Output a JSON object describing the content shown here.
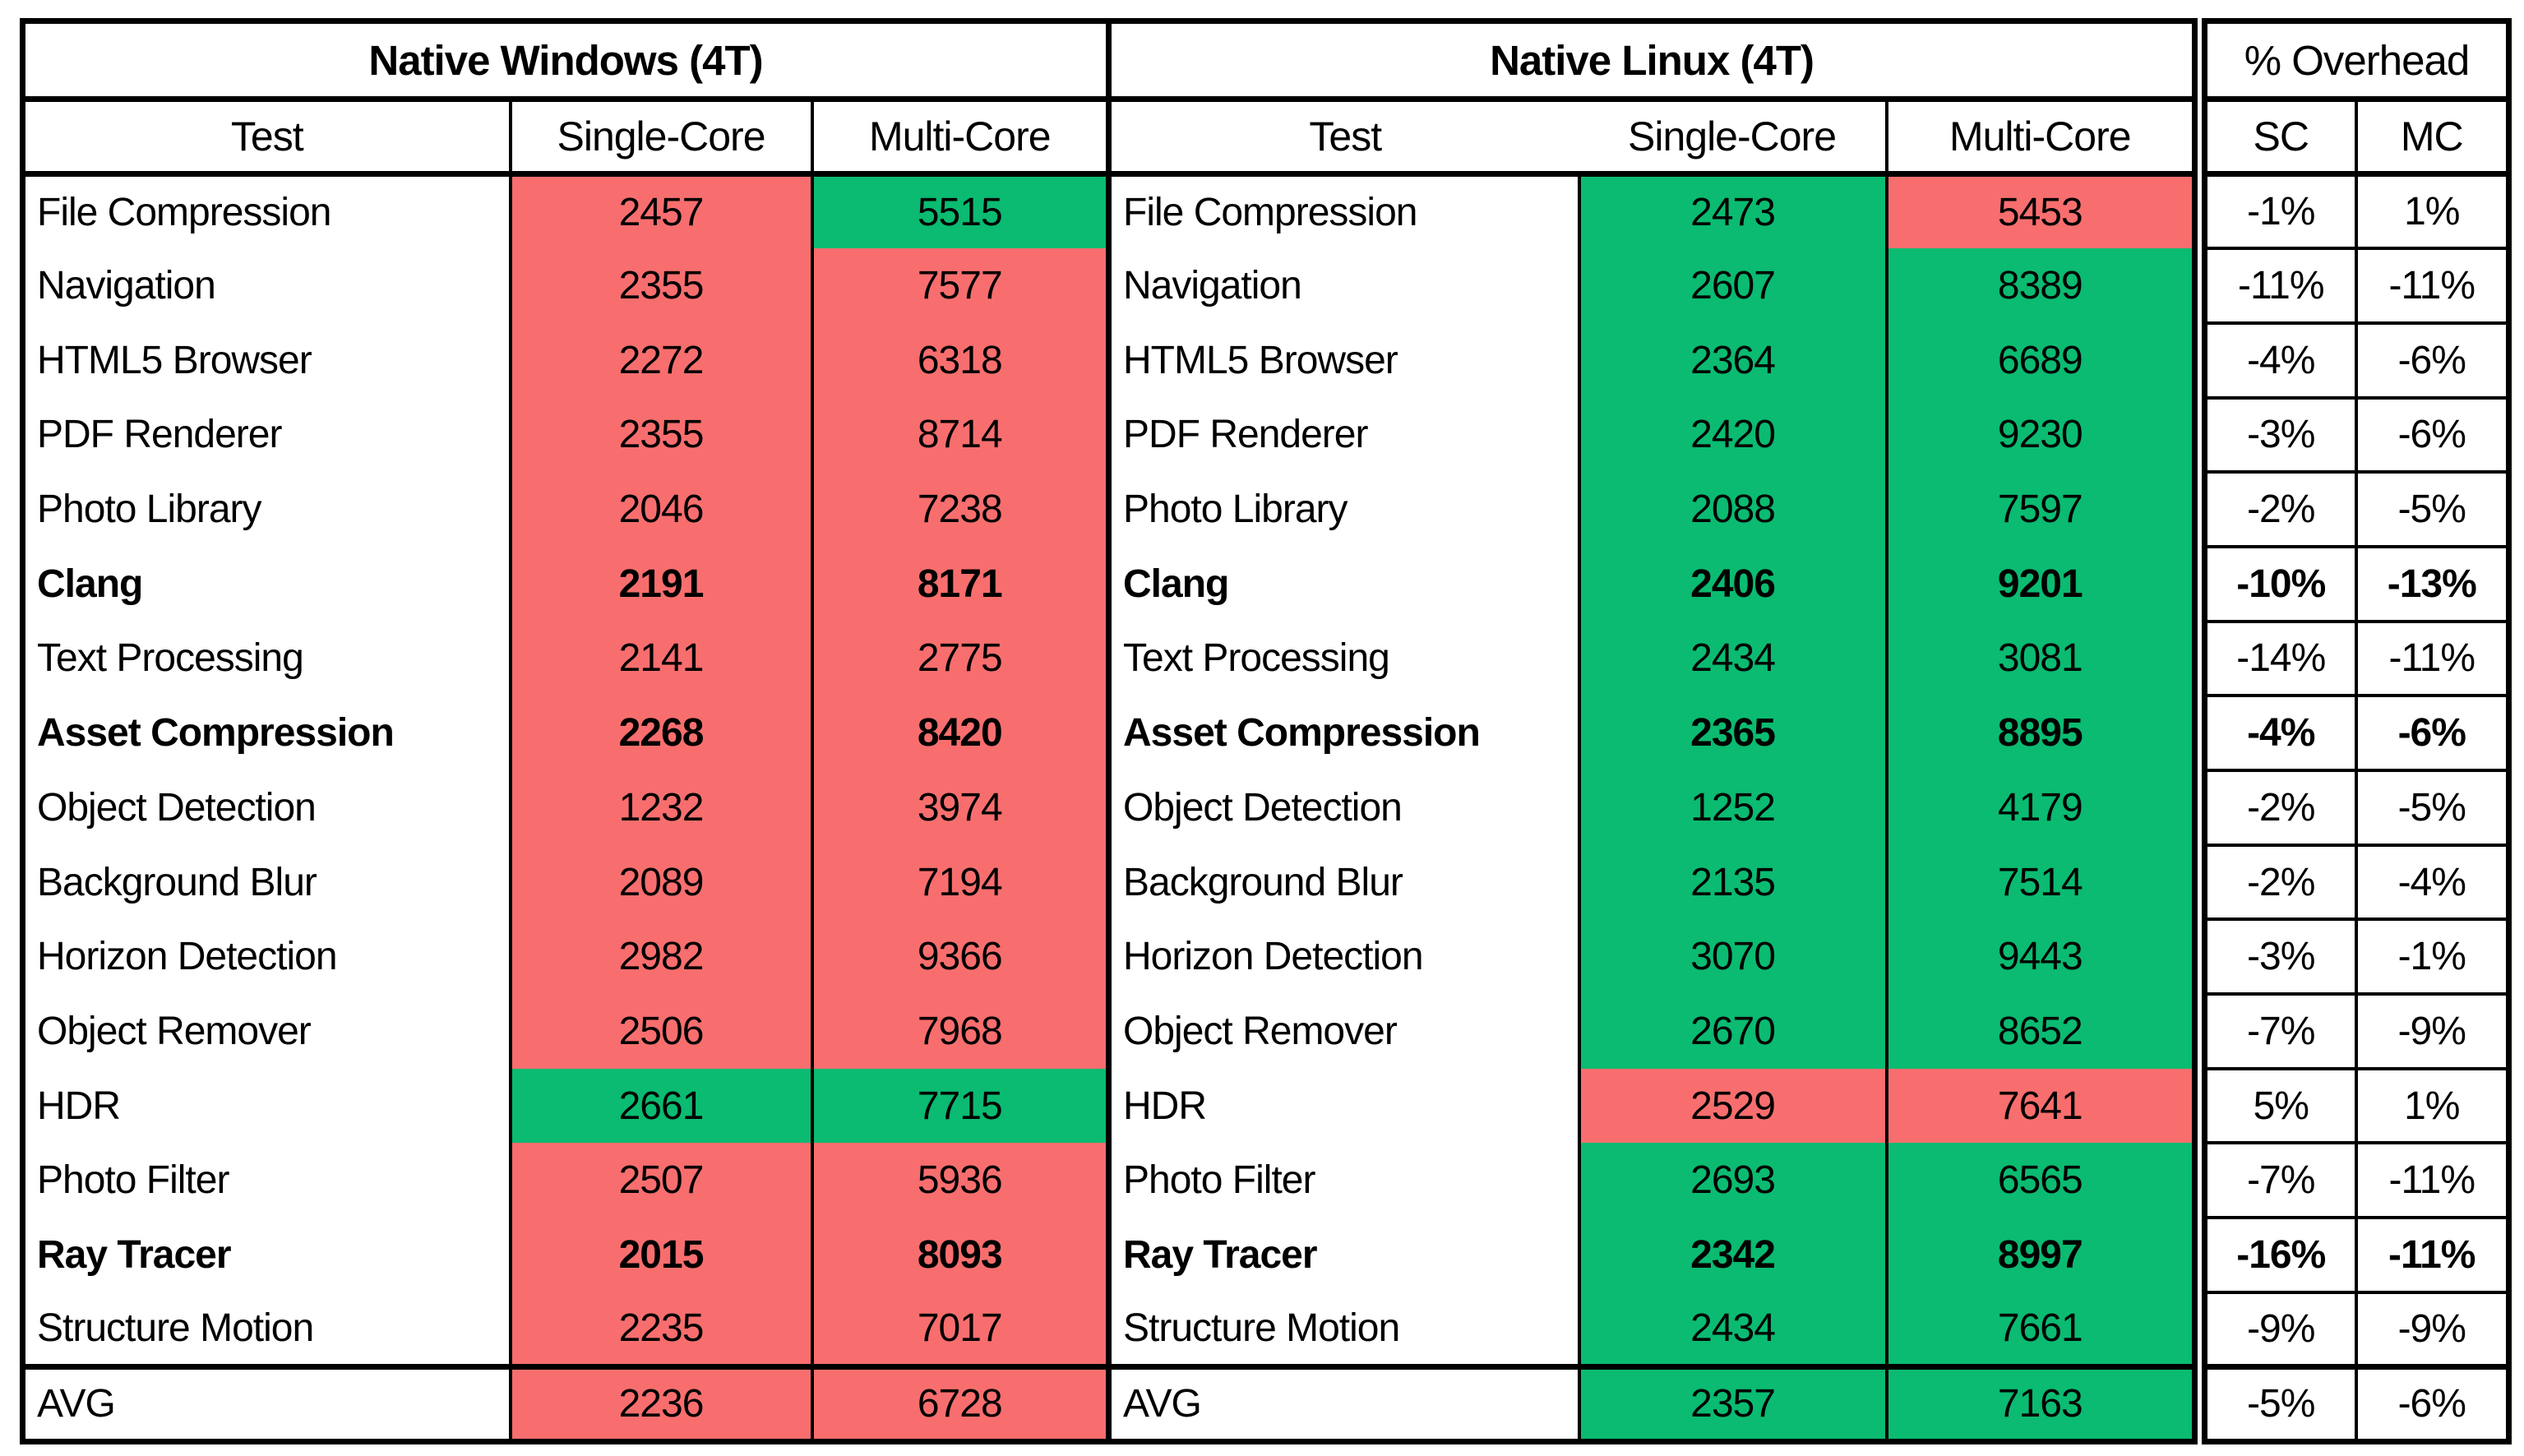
{
  "colors": {
    "red_fill": "#F86E6E",
    "green_fill": "#0ABB71",
    "border": "#000000",
    "background": "#FFFFFF"
  },
  "windows_section": {
    "title": "Native Windows (4T)",
    "col_test": "Test",
    "col_sc": "Single-Core",
    "col_mc": "Multi-Core"
  },
  "linux_section": {
    "title": "Native Linux (4T)",
    "col_test": "Test",
    "col_sc": "Single-Core",
    "col_mc": "Multi-Core"
  },
  "overhead_section": {
    "title": "% Overhead",
    "col_sc": "SC",
    "col_mc": "MC"
  },
  "chart_data": {
    "type": "table",
    "title": "Native Windows (4T) vs Native Linux (4T) benchmark scores with % Overhead",
    "sections": [
      "Native Windows (4T)",
      "Native Linux (4T)",
      "% Overhead"
    ],
    "columns": [
      "Test",
      "Windows Single-Core",
      "Windows Multi-Core",
      "Test",
      "Linux Single-Core",
      "Linux Multi-Core",
      "SC Overhead",
      "MC Overhead"
    ],
    "cell_color_legend": {
      "red": "lower/worse score",
      "green": "higher/better score"
    },
    "rows": [
      {
        "test": "File Compression",
        "bold": false,
        "avg": false,
        "win": {
          "sc": "2457",
          "sc_color": "red",
          "mc": "5515",
          "mc_color": "green"
        },
        "lin": {
          "sc": "2473",
          "sc_color": "green",
          "mc": "5453",
          "mc_color": "red"
        },
        "overhead": {
          "sc": "-1%",
          "mc": "1%"
        }
      },
      {
        "test": "Navigation",
        "bold": false,
        "avg": false,
        "win": {
          "sc": "2355",
          "sc_color": "red",
          "mc": "7577",
          "mc_color": "red"
        },
        "lin": {
          "sc": "2607",
          "sc_color": "green",
          "mc": "8389",
          "mc_color": "green"
        },
        "overhead": {
          "sc": "-11%",
          "mc": "-11%"
        }
      },
      {
        "test": "HTML5 Browser",
        "bold": false,
        "avg": false,
        "win": {
          "sc": "2272",
          "sc_color": "red",
          "mc": "6318",
          "mc_color": "red"
        },
        "lin": {
          "sc": "2364",
          "sc_color": "green",
          "mc": "6689",
          "mc_color": "green"
        },
        "overhead": {
          "sc": "-4%",
          "mc": "-6%"
        }
      },
      {
        "test": "PDF Renderer",
        "bold": false,
        "avg": false,
        "win": {
          "sc": "2355",
          "sc_color": "red",
          "mc": "8714",
          "mc_color": "red"
        },
        "lin": {
          "sc": "2420",
          "sc_color": "green",
          "mc": "9230",
          "mc_color": "green"
        },
        "overhead": {
          "sc": "-3%",
          "mc": "-6%"
        }
      },
      {
        "test": "Photo Library",
        "bold": false,
        "avg": false,
        "win": {
          "sc": "2046",
          "sc_color": "red",
          "mc": "7238",
          "mc_color": "red"
        },
        "lin": {
          "sc": "2088",
          "sc_color": "green",
          "mc": "7597",
          "mc_color": "green"
        },
        "overhead": {
          "sc": "-2%",
          "mc": "-5%"
        }
      },
      {
        "test": "Clang",
        "bold": true,
        "avg": false,
        "win": {
          "sc": "2191",
          "sc_color": "red",
          "mc": "8171",
          "mc_color": "red"
        },
        "lin": {
          "sc": "2406",
          "sc_color": "green",
          "mc": "9201",
          "mc_color": "green"
        },
        "overhead": {
          "sc": "-10%",
          "mc": "-13%"
        }
      },
      {
        "test": "Text Processing",
        "bold": false,
        "avg": false,
        "win": {
          "sc": "2141",
          "sc_color": "red",
          "mc": "2775",
          "mc_color": "red"
        },
        "lin": {
          "sc": "2434",
          "sc_color": "green",
          "mc": "3081",
          "mc_color": "green"
        },
        "overhead": {
          "sc": "-14%",
          "mc": "-11%"
        }
      },
      {
        "test": "Asset Compression",
        "bold": true,
        "avg": false,
        "win": {
          "sc": "2268",
          "sc_color": "red",
          "mc": "8420",
          "mc_color": "red"
        },
        "lin": {
          "sc": "2365",
          "sc_color": "green",
          "mc": "8895",
          "mc_color": "green"
        },
        "overhead": {
          "sc": "-4%",
          "mc": "-6%"
        }
      },
      {
        "test": "Object Detection",
        "bold": false,
        "avg": false,
        "win": {
          "sc": "1232",
          "sc_color": "red",
          "mc": "3974",
          "mc_color": "red"
        },
        "lin": {
          "sc": "1252",
          "sc_color": "green",
          "mc": "4179",
          "mc_color": "green"
        },
        "overhead": {
          "sc": "-2%",
          "mc": "-5%"
        }
      },
      {
        "test": "Background Blur",
        "bold": false,
        "avg": false,
        "win": {
          "sc": "2089",
          "sc_color": "red",
          "mc": "7194",
          "mc_color": "red"
        },
        "lin": {
          "sc": "2135",
          "sc_color": "green",
          "mc": "7514",
          "mc_color": "green"
        },
        "overhead": {
          "sc": "-2%",
          "mc": "-4%"
        }
      },
      {
        "test": "Horizon Detection",
        "bold": false,
        "avg": false,
        "win": {
          "sc": "2982",
          "sc_color": "red",
          "mc": "9366",
          "mc_color": "red"
        },
        "lin": {
          "sc": "3070",
          "sc_color": "green",
          "mc": "9443",
          "mc_color": "green"
        },
        "overhead": {
          "sc": "-3%",
          "mc": "-1%"
        }
      },
      {
        "test": "Object Remover",
        "bold": false,
        "avg": false,
        "win": {
          "sc": "2506",
          "sc_color": "red",
          "mc": "7968",
          "mc_color": "red"
        },
        "lin": {
          "sc": "2670",
          "sc_color": "green",
          "mc": "8652",
          "mc_color": "green"
        },
        "overhead": {
          "sc": "-7%",
          "mc": "-9%"
        }
      },
      {
        "test": "HDR",
        "bold": false,
        "avg": false,
        "win": {
          "sc": "2661",
          "sc_color": "green",
          "mc": "7715",
          "mc_color": "green"
        },
        "lin": {
          "sc": "2529",
          "sc_color": "red",
          "mc": "7641",
          "mc_color": "red"
        },
        "overhead": {
          "sc": "5%",
          "mc": "1%"
        }
      },
      {
        "test": "Photo Filter",
        "bold": false,
        "avg": false,
        "win": {
          "sc": "2507",
          "sc_color": "red",
          "mc": "5936",
          "mc_color": "red"
        },
        "lin": {
          "sc": "2693",
          "sc_color": "green",
          "mc": "6565",
          "mc_color": "green"
        },
        "overhead": {
          "sc": "-7%",
          "mc": "-11%"
        }
      },
      {
        "test": "Ray Tracer",
        "bold": true,
        "avg": false,
        "win": {
          "sc": "2015",
          "sc_color": "red",
          "mc": "8093",
          "mc_color": "red"
        },
        "lin": {
          "sc": "2342",
          "sc_color": "green",
          "mc": "8997",
          "mc_color": "green"
        },
        "overhead": {
          "sc": "-16%",
          "mc": "-11%"
        }
      },
      {
        "test": "Structure Motion",
        "bold": false,
        "avg": false,
        "win": {
          "sc": "2235",
          "sc_color": "red",
          "mc": "7017",
          "mc_color": "red"
        },
        "lin": {
          "sc": "2434",
          "sc_color": "green",
          "mc": "7661",
          "mc_color": "green"
        },
        "overhead": {
          "sc": "-9%",
          "mc": "-9%"
        }
      },
      {
        "test": "AVG",
        "bold": false,
        "avg": true,
        "win": {
          "sc": "2236",
          "sc_color": "red",
          "mc": "6728",
          "mc_color": "red"
        },
        "lin": {
          "sc": "2357",
          "sc_color": "green",
          "mc": "7163",
          "mc_color": "green"
        },
        "overhead": {
          "sc": "-5%",
          "mc": "-6%"
        }
      }
    ]
  }
}
